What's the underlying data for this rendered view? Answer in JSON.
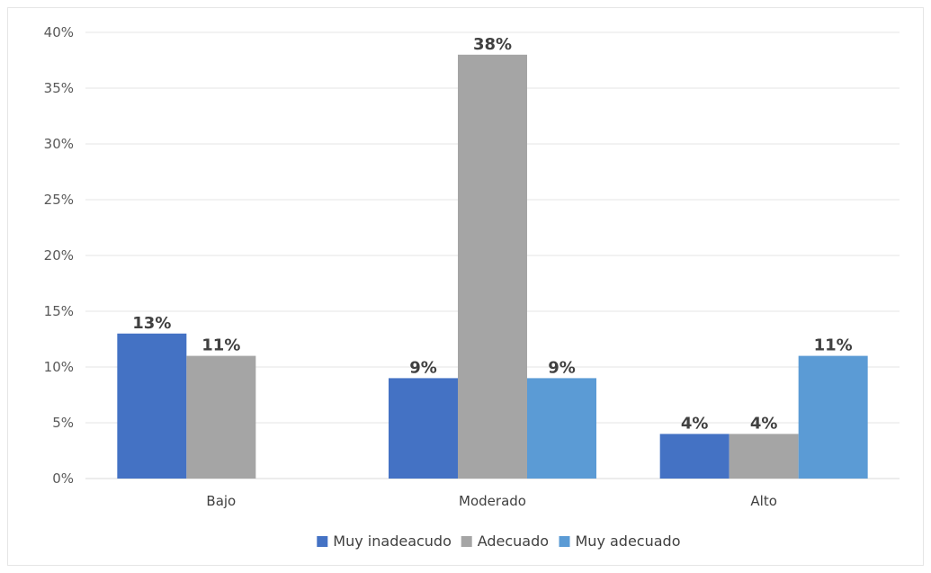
{
  "chart_data": {
    "type": "bar",
    "categories": [
      "Bajo",
      "Moderado",
      "Alto"
    ],
    "series": [
      {
        "name": "Muy inadeacudo",
        "color": "#4472C4",
        "values": [
          13,
          9,
          4
        ],
        "labels": [
          "13%",
          "9%",
          "4%"
        ]
      },
      {
        "name": "Adecuado",
        "color": "#A5A5A5",
        "values": [
          11,
          38,
          4
        ],
        "labels": [
          "11%",
          "38%",
          "4%"
        ]
      },
      {
        "name": "Muy adecuado",
        "color": "#5B9BD5",
        "values": [
          0,
          9,
          11
        ],
        "labels": [
          "",
          "9%",
          "11%"
        ]
      }
    ],
    "ylim": [
      0,
      40
    ],
    "yticks": [
      0,
      5,
      10,
      15,
      20,
      25,
      30,
      35,
      40
    ],
    "ytick_labels": [
      "0%",
      "5%",
      "10%",
      "15%",
      "20%",
      "25%",
      "30%",
      "35%",
      "40%"
    ],
    "grid": true,
    "legend_position": "bottom"
  }
}
